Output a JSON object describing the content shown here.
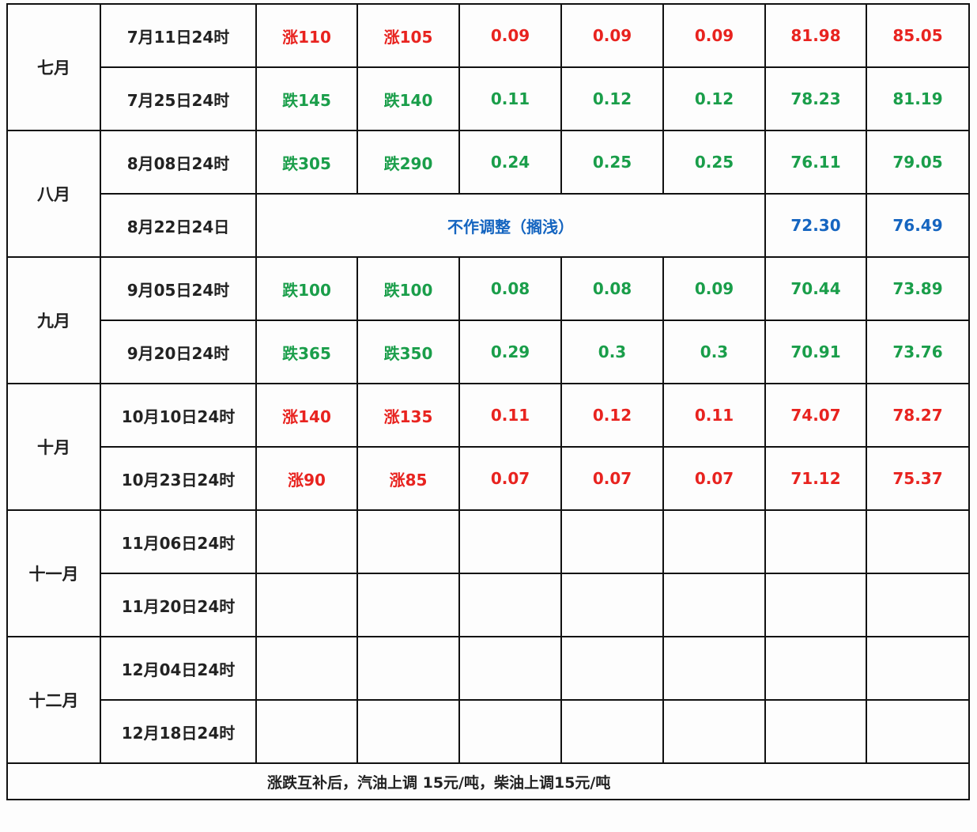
{
  "colors": {
    "up": "#e8231f",
    "down": "#1a9e4a",
    "hold": "#1565c0"
  },
  "months": [
    {
      "label": "七月",
      "rows": [
        {
          "date": "7月11日24时",
          "status": "up",
          "cells": [
            "涨110",
            "涨105",
            "0.09",
            "0.09",
            "0.09",
            "81.98",
            "85.05"
          ]
        },
        {
          "date": "7月25日24时",
          "status": "down",
          "cells": [
            "跌145",
            "跌140",
            "0.11",
            "0.12",
            "0.12",
            "78.23",
            "81.19"
          ]
        }
      ]
    },
    {
      "label": "八月",
      "rows": [
        {
          "date": "8月08日24时",
          "status": "down",
          "cells": [
            "跌305",
            "跌290",
            "0.24",
            "0.25",
            "0.25",
            "76.11",
            "79.05"
          ]
        },
        {
          "date": "8月22日24日",
          "status": "hold",
          "merged": "不作调整（搁浅）",
          "cells": [
            "72.30",
            "76.49"
          ]
        }
      ]
    },
    {
      "label": "九月",
      "rows": [
        {
          "date": "9月05日24时",
          "status": "down",
          "cells": [
            "跌100",
            "跌100",
            "0.08",
            "0.08",
            "0.09",
            "70.44",
            "73.89"
          ]
        },
        {
          "date": "9月20日24时",
          "status": "down",
          "cells": [
            "跌365",
            "跌350",
            "0.29",
            "0.3",
            "0.3",
            "70.91",
            "73.76"
          ]
        }
      ]
    },
    {
      "label": "十月",
      "rows": [
        {
          "date": "10月10日24时",
          "status": "up",
          "cells": [
            "涨140",
            "涨135",
            "0.11",
            "0.12",
            "0.11",
            "74.07",
            "78.27"
          ]
        },
        {
          "date": "10月23日24时",
          "status": "up",
          "cells": [
            "涨90",
            "涨85",
            "0.07",
            "0.07",
            "0.07",
            "71.12",
            "75.37"
          ]
        }
      ]
    },
    {
      "label": "十一月",
      "rows": [
        {
          "date": "11月06日24时",
          "status": "empty",
          "cells": [
            "",
            "",
            "",
            "",
            "",
            "",
            ""
          ]
        },
        {
          "date": "11月20日24时",
          "status": "empty",
          "cells": [
            "",
            "",
            "",
            "",
            "",
            "",
            ""
          ]
        }
      ]
    },
    {
      "label": "十二月",
      "rows": [
        {
          "date": "12月04日24时",
          "status": "empty",
          "cells": [
            "",
            "",
            "",
            "",
            "",
            "",
            ""
          ]
        },
        {
          "date": "12月18日24时",
          "status": "empty",
          "cells": [
            "",
            "",
            "",
            "",
            "",
            "",
            ""
          ]
        }
      ]
    }
  ],
  "note": "涨跌互补后，汽油上调 15元/吨，柴油上调15元/吨"
}
